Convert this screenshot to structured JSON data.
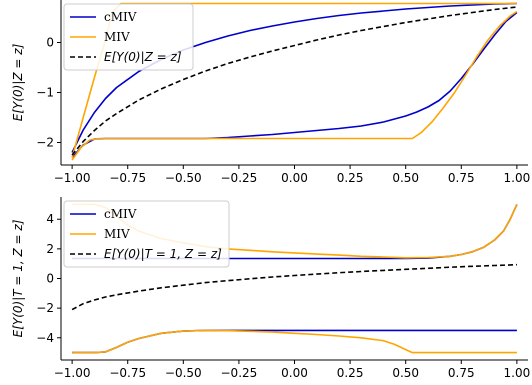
{
  "chart_data": [
    {
      "type": "line",
      "title": "",
      "xlabel": "",
      "ylabel": "E[Y(0)|Z = z]",
      "xlim": [
        -1.05,
        1.05
      ],
      "ylim": [
        -2.45,
        0.85
      ],
      "xticks": [
        -1.0,
        -0.75,
        -0.5,
        -0.25,
        0.0,
        0.25,
        0.5,
        0.75,
        1.0
      ],
      "xtick_labels": [
        "−1.00",
        "−0.75",
        "−0.50",
        "−0.25",
        "0.00",
        "0.25",
        "0.50",
        "0.75",
        "1.00"
      ],
      "yticks": [
        -2,
        -1,
        0
      ],
      "ytick_labels": [
        "−2",
        "−1",
        "0"
      ],
      "grid": false,
      "legend_position": "top-left",
      "series": [
        {
          "name": "cMIV",
          "color": "#0000cc",
          "style": "solid",
          "role": "upper",
          "x": [
            -1.0,
            -0.95,
            -0.9,
            -0.85,
            -0.8,
            -0.7,
            -0.6,
            -0.5,
            -0.4,
            -0.3,
            -0.2,
            -0.1,
            0.0,
            0.1,
            0.2,
            0.3,
            0.4,
            0.5,
            0.6,
            0.7,
            0.8,
            0.9,
            1.0
          ],
          "y": [
            -2.2,
            -1.75,
            -1.4,
            -1.12,
            -0.9,
            -0.58,
            -0.34,
            -0.15,
            0.0,
            0.13,
            0.24,
            0.33,
            0.41,
            0.48,
            0.54,
            0.59,
            0.63,
            0.67,
            0.7,
            0.73,
            0.75,
            0.77,
            0.78
          ]
        },
        {
          "name": "cMIV",
          "color": "#0000cc",
          "style": "solid",
          "role": "lower",
          "x": [
            -1.0,
            -0.95,
            -0.9,
            -0.85,
            -0.8,
            -0.6,
            -0.4,
            -0.3,
            -0.2,
            -0.1,
            0.0,
            0.1,
            0.2,
            0.3,
            0.4,
            0.5,
            0.55,
            0.6,
            0.65,
            0.7,
            0.75,
            0.8,
            0.85,
            0.9,
            0.95,
            1.0
          ],
          "y": [
            -2.3,
            -2.05,
            -1.93,
            -1.92,
            -1.92,
            -1.92,
            -1.92,
            -1.9,
            -1.87,
            -1.84,
            -1.8,
            -1.76,
            -1.72,
            -1.67,
            -1.59,
            -1.47,
            -1.39,
            -1.29,
            -1.16,
            -0.97,
            -0.72,
            -0.44,
            -0.14,
            0.15,
            0.42,
            0.6
          ]
        },
        {
          "name": "MIV",
          "color": "#ffa500",
          "style": "solid",
          "role": "upper",
          "x": [
            -1.0,
            -0.95,
            -0.9,
            -0.85,
            -0.82,
            -0.78,
            1.0
          ],
          "y": [
            -2.3,
            -1.5,
            -0.7,
            0.05,
            0.6,
            0.78,
            0.78
          ]
        },
        {
          "name": "MIV",
          "color": "#ffa500",
          "style": "solid",
          "role": "lower",
          "x": [
            -1.0,
            -0.96,
            -0.92,
            -0.88,
            -0.8,
            0.53,
            0.57,
            0.62,
            0.67,
            0.72,
            0.77,
            0.82,
            0.87,
            0.92,
            0.97,
            1.0
          ],
          "y": [
            -2.35,
            -2.1,
            -1.95,
            -1.92,
            -1.92,
            -1.92,
            -1.8,
            -1.58,
            -1.3,
            -1.0,
            -0.65,
            -0.28,
            0.05,
            0.32,
            0.53,
            0.62
          ]
        },
        {
          "name": "E[Y(0)|Z = z]",
          "color": "#000000",
          "style": "dashed",
          "role": "mean",
          "x": [
            -1.0,
            -0.95,
            -0.9,
            -0.85,
            -0.8,
            -0.7,
            -0.6,
            -0.5,
            -0.4,
            -0.3,
            -0.2,
            -0.1,
            0.0,
            0.1,
            0.2,
            0.3,
            0.4,
            0.5,
            0.6,
            0.7,
            0.8,
            0.9,
            1.0
          ],
          "y": [
            -2.25,
            -1.98,
            -1.76,
            -1.57,
            -1.42,
            -1.15,
            -0.93,
            -0.74,
            -0.57,
            -0.42,
            -0.29,
            -0.17,
            -0.06,
            0.05,
            0.15,
            0.24,
            0.32,
            0.4,
            0.47,
            0.54,
            0.6,
            0.66,
            0.71
          ]
        }
      ],
      "legend": [
        {
          "label": "cMIV",
          "color": "#0000cc",
          "style": "solid"
        },
        {
          "label": "MIV",
          "color": "#ffa500",
          "style": "solid"
        },
        {
          "label": "E[Y(0)|Z = z]",
          "color": "#000000",
          "style": "dashed"
        }
      ]
    },
    {
      "type": "line",
      "title": "",
      "xlabel": "",
      "ylabel": "E[Y(0)|T = 1, Z = z]",
      "xlim": [
        -1.05,
        1.05
      ],
      "ylim": [
        -5.5,
        5.5
      ],
      "xticks": [
        -1.0,
        -0.75,
        -0.5,
        -0.25,
        0.0,
        0.25,
        0.5,
        0.75,
        1.0
      ],
      "xtick_labels": [
        "−1.00",
        "−0.75",
        "−0.50",
        "−0.25",
        "0.00",
        "0.25",
        "0.50",
        "0.75",
        "1.00"
      ],
      "yticks": [
        -4,
        -2,
        0,
        2,
        4
      ],
      "ytick_labels": [
        "−4",
        "−2",
        "0",
        "2",
        "4"
      ],
      "grid": false,
      "legend_position": "top-left",
      "series": [
        {
          "name": "cMIV",
          "color": "#0000cc",
          "style": "solid",
          "role": "upper",
          "x": [
            -1.0,
            -0.5,
            0.0,
            0.5,
            0.6,
            0.7,
            0.75,
            0.8,
            0.85,
            0.9,
            0.94,
            0.97,
            1.0
          ],
          "y": [
            1.35,
            1.35,
            1.35,
            1.35,
            1.38,
            1.5,
            1.62,
            1.8,
            2.1,
            2.6,
            3.2,
            4.0,
            5.0
          ]
        },
        {
          "name": "cMIV",
          "color": "#0000cc",
          "style": "solid",
          "role": "lower",
          "x": [
            -1.0,
            -0.9,
            -0.85,
            -0.8,
            -0.75,
            -0.7,
            -0.6,
            -0.5,
            -0.4,
            1.0
          ],
          "y": [
            -5.0,
            -5.0,
            -4.95,
            -4.65,
            -4.3,
            -4.05,
            -3.7,
            -3.55,
            -3.5,
            -3.5
          ]
        },
        {
          "name": "MIV",
          "color": "#ffa500",
          "style": "solid",
          "role": "upper",
          "x": [
            -1.0,
            -0.9,
            -0.85,
            -0.8,
            -0.75,
            -0.7,
            -0.6,
            -0.5,
            -0.4,
            -0.3,
            -0.2,
            -0.1,
            0.0,
            0.1,
            0.2,
            0.3,
            0.4,
            0.5,
            0.6,
            0.7,
            0.75,
            0.8,
            0.85,
            0.9,
            0.94,
            0.97,
            1.0
          ],
          "y": [
            5.0,
            5.0,
            4.8,
            4.2,
            3.6,
            3.2,
            2.7,
            2.4,
            2.15,
            2.0,
            1.9,
            1.8,
            1.73,
            1.65,
            1.58,
            1.5,
            1.45,
            1.4,
            1.42,
            1.5,
            1.62,
            1.8,
            2.1,
            2.6,
            3.2,
            4.0,
            5.0
          ]
        },
        {
          "name": "MIV",
          "color": "#ffa500",
          "style": "solid",
          "role": "lower",
          "x": [
            -1.0,
            -0.9,
            -0.85,
            -0.8,
            -0.75,
            -0.7,
            -0.6,
            -0.5,
            -0.4,
            -0.3,
            -0.2,
            -0.1,
            0.0,
            0.1,
            0.2,
            0.3,
            0.4,
            0.45,
            0.5,
            0.53,
            1.0
          ],
          "y": [
            -5.0,
            -5.0,
            -4.95,
            -4.65,
            -4.3,
            -4.05,
            -3.7,
            -3.55,
            -3.5,
            -3.52,
            -3.56,
            -3.62,
            -3.7,
            -3.78,
            -3.88,
            -4.0,
            -4.2,
            -4.45,
            -4.8,
            -5.0,
            -5.0
          ]
        },
        {
          "name": "E[Y(0)|T = 1, Z = z]",
          "color": "#000000",
          "style": "dashed",
          "role": "mean",
          "x": [
            -1.0,
            -0.95,
            -0.9,
            -0.85,
            -0.8,
            -0.7,
            -0.6,
            -0.5,
            -0.4,
            -0.3,
            -0.2,
            -0.1,
            0.0,
            0.1,
            0.2,
            0.3,
            0.4,
            0.5,
            0.6,
            0.7,
            0.8,
            0.9,
            1.0
          ],
          "y": [
            -2.1,
            -1.7,
            -1.45,
            -1.25,
            -1.1,
            -0.85,
            -0.63,
            -0.45,
            -0.28,
            -0.14,
            -0.02,
            0.1,
            0.2,
            0.3,
            0.39,
            0.47,
            0.55,
            0.62,
            0.69,
            0.76,
            0.82,
            0.88,
            0.93
          ]
        }
      ],
      "legend": [
        {
          "label": "cMIV",
          "color": "#0000cc",
          "style": "solid"
        },
        {
          "label": "MIV",
          "color": "#ffa500",
          "style": "solid"
        },
        {
          "label": "E[Y(0)|T = 1, Z = z]",
          "color": "#000000",
          "style": "dashed"
        }
      ]
    }
  ]
}
